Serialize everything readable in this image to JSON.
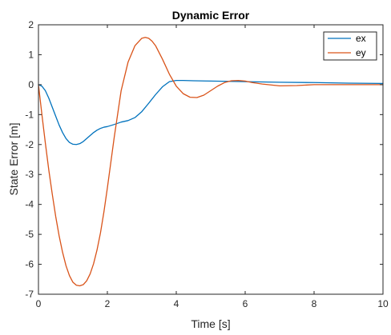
{
  "chart_data": {
    "type": "line",
    "title": "Dynamic Error",
    "xlabel": "Time [s]",
    "ylabel": "State Error [m]",
    "xlim": [
      0,
      10
    ],
    "ylim": [
      -7,
      2
    ],
    "xticks": [
      0,
      2,
      4,
      6,
      8,
      10
    ],
    "yticks": [
      2,
      1,
      0,
      -1,
      -2,
      -3,
      -4,
      -5,
      -6,
      -7
    ],
    "grid": false,
    "legend_position": "top-right",
    "series": [
      {
        "name": "ex",
        "color": "#0072BD",
        "x": [
          0,
          0.1,
          0.2,
          0.3,
          0.4,
          0.5,
          0.6,
          0.7,
          0.8,
          0.9,
          1.0,
          1.1,
          1.2,
          1.3,
          1.4,
          1.5,
          1.6,
          1.7,
          1.8,
          1.9,
          2.0,
          2.2,
          2.4,
          2.6,
          2.8,
          3.0,
          3.2,
          3.4,
          3.6,
          3.8,
          4.0,
          4.2,
          4.5,
          5.0,
          5.5,
          6.0,
          7.0,
          8.0,
          9.0,
          10.0
        ],
        "values": [
          0,
          -0.05,
          -0.2,
          -0.45,
          -0.75,
          -1.05,
          -1.35,
          -1.6,
          -1.8,
          -1.93,
          -1.99,
          -2.0,
          -1.97,
          -1.9,
          -1.8,
          -1.7,
          -1.6,
          -1.52,
          -1.46,
          -1.42,
          -1.4,
          -1.33,
          -1.25,
          -1.2,
          -1.1,
          -0.9,
          -0.62,
          -0.33,
          -0.07,
          0.1,
          0.14,
          0.14,
          0.13,
          0.12,
          0.11,
          0.1,
          0.08,
          0.07,
          0.05,
          0.04
        ]
      },
      {
        "name": "ey",
        "color": "#D95319",
        "x": [
          0,
          0.1,
          0.2,
          0.3,
          0.4,
          0.5,
          0.6,
          0.7,
          0.8,
          0.9,
          1.0,
          1.1,
          1.2,
          1.3,
          1.4,
          1.5,
          1.6,
          1.7,
          1.8,
          1.9,
          2.0,
          2.2,
          2.4,
          2.6,
          2.8,
          3.0,
          3.1,
          3.2,
          3.3,
          3.4,
          3.6,
          3.8,
          4.0,
          4.2,
          4.4,
          4.6,
          4.8,
          5.0,
          5.2,
          5.4,
          5.6,
          5.8,
          6.0,
          6.2,
          6.5,
          7.0,
          7.5,
          8.0,
          9.0,
          10.0
        ],
        "values": [
          0,
          -1.0,
          -1.95,
          -2.85,
          -3.65,
          -4.4,
          -5.05,
          -5.6,
          -6.05,
          -6.38,
          -6.6,
          -6.7,
          -6.72,
          -6.68,
          -6.55,
          -6.32,
          -5.98,
          -5.52,
          -4.95,
          -4.25,
          -3.45,
          -1.75,
          -0.2,
          0.75,
          1.3,
          1.55,
          1.58,
          1.55,
          1.45,
          1.3,
          0.85,
          0.35,
          -0.05,
          -0.3,
          -0.42,
          -0.43,
          -0.35,
          -0.2,
          -0.05,
          0.07,
          0.13,
          0.14,
          0.12,
          0.07,
          0.02,
          -0.04,
          -0.03,
          0.0,
          0.0,
          0.0
        ]
      }
    ]
  }
}
